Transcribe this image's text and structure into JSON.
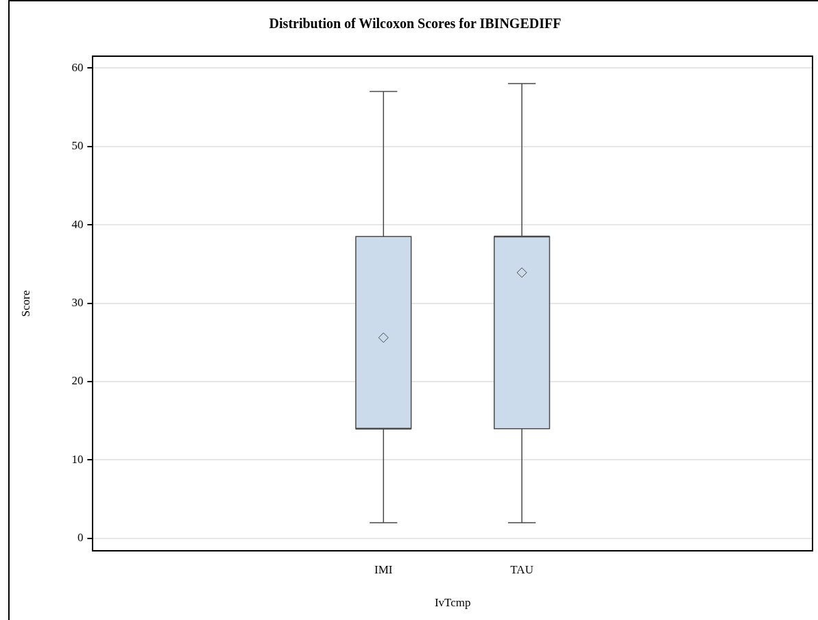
{
  "chart_data": {
    "type": "box",
    "title": "Distribution of Wilcoxon Scores for IBINGEDIFF",
    "xlabel": "IvTcmp",
    "ylabel": "Score",
    "categories": [
      "IMI",
      "TAU"
    ],
    "boxes": [
      {
        "low": 2,
        "q1": 14,
        "median": 14,
        "q3": 38.5,
        "high": 57,
        "mean": 25.6
      },
      {
        "low": 2,
        "q1": 14,
        "median": 38.5,
        "q3": 38.5,
        "high": 58,
        "mean": 33.9
      }
    ],
    "color": "#cbdbeb",
    "ylim": [
      -1.6,
      61.5
    ],
    "yticks": [
      0,
      10,
      20,
      30,
      40,
      50,
      60
    ],
    "grid": "y",
    "marker": "diamond"
  }
}
